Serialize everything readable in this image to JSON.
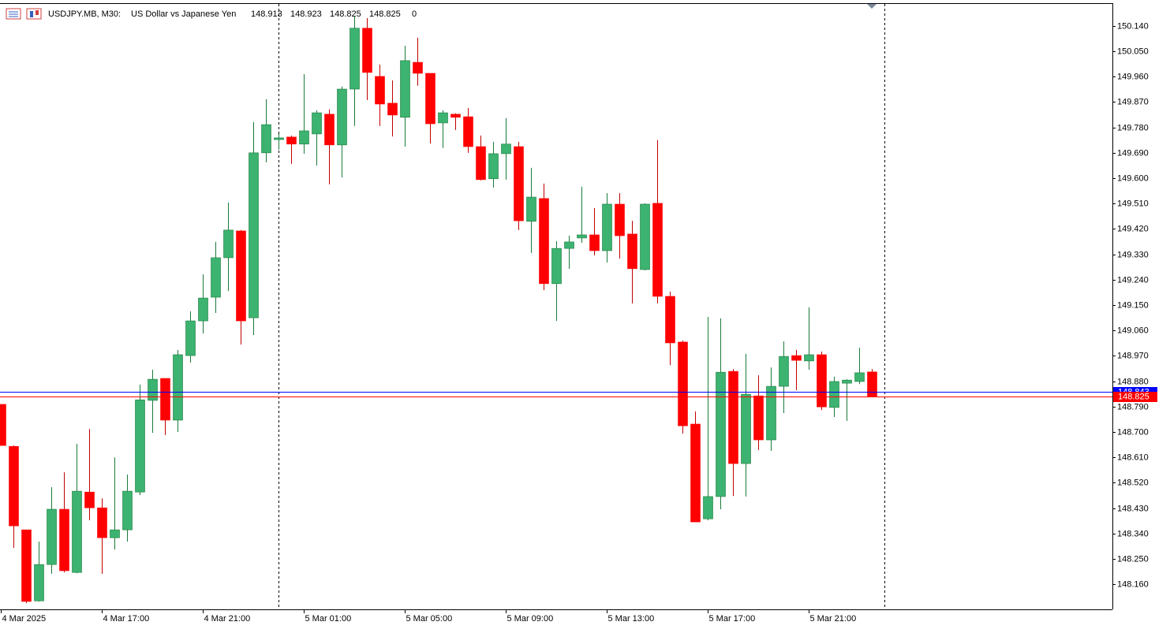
{
  "chart_data": {
    "type": "candlestick",
    "header": {
      "symbol": "USDJPY.MB, M30:",
      "description": "US Dollar vs Japanese Yen",
      "open": 148.913,
      "high": 148.923,
      "low": 148.825,
      "close": 148.825,
      "spread": 0
    },
    "categories": [
      "4 Mar 2025",
      null,
      null,
      null,
      null,
      null,
      null,
      null,
      "4 Mar 17:00",
      null,
      null,
      null,
      null,
      null,
      null,
      null,
      "4 Mar 21:00",
      null,
      null,
      null,
      null,
      null,
      null,
      null,
      "5 Mar 01:00",
      null,
      null,
      null,
      null,
      null,
      null,
      null,
      "5 Mar 05:00",
      null,
      null,
      null,
      null,
      null,
      null,
      null,
      "5 Mar 09:00",
      null,
      null,
      null,
      null,
      null,
      null,
      null,
      "5 Mar 13:00",
      null,
      null,
      null,
      null,
      null,
      null,
      null,
      "5 Mar 17:00",
      null,
      null,
      null,
      null,
      null,
      null,
      null,
      "5 Mar 21:00",
      null,
      null,
      null,
      null,
      null
    ],
    "open": [
      148.798,
      148.649,
      148.353,
      148.101,
      148.23,
      148.426,
      148.202,
      148.487,
      148.431,
      148.325,
      148.353,
      148.487,
      148.812,
      148.89,
      148.742,
      148.971,
      149.094,
      149.178,
      149.318,
      149.413,
      149.105,
      149.69,
      149.737,
      149.746,
      149.721,
      149.757,
      149.827,
      149.718,
      149.916,
      150.132,
      149.961,
      149.866,
      149.816,
      150.011,
      149.972,
      149.796,
      149.827,
      149.818,
      149.712,
      149.598,
      149.687,
      149.712,
      149.447,
      149.528,
      149.226,
      149.351,
      149.388,
      149.399,
      149.343,
      149.508,
      149.402,
      149.276,
      149.511,
      149.181,
      149.019,
      148.728,
      148.392,
      148.471,
      148.915,
      148.588,
      148.828,
      148.672,
      148.862,
      148.971,
      148.952,
      148.974,
      148.787,
      148.873,
      148.879,
      148.913
    ],
    "high": [
      148.798,
      148.652,
      148.353,
      148.311,
      148.504,
      148.557,
      148.658,
      148.711,
      148.465,
      148.61,
      148.549,
      148.868,
      148.921,
      148.89,
      148.991,
      149.128,
      149.259,
      149.374,
      149.514,
      149.416,
      149.799,
      149.88,
      149.757,
      149.751,
      149.969,
      149.841,
      149.844,
      149.925,
      150.174,
      150.168,
      150.003,
      149.947,
      150.07,
      150.098,
      149.972,
      149.841,
      149.83,
      149.849,
      149.751,
      149.729,
      149.813,
      149.729,
      149.637,
      149.581,
      149.377,
      149.396,
      149.57,
      149.494,
      149.547,
      149.547,
      149.449,
      149.511,
      149.735,
      149.198,
      149.024,
      148.773,
      149.108,
      149.103,
      148.923,
      148.977,
      148.901,
      148.929,
      149.021,
      148.991,
      149.142,
      148.985,
      148.896,
      148.887,
      148.999,
      148.923
    ],
    "low": [
      148.652,
      148.289,
      148.093,
      148.099,
      148.197,
      148.202,
      148.199,
      148.387,
      148.197,
      148.283,
      148.311,
      148.476,
      148.697,
      148.689,
      148.7,
      148.946,
      149.049,
      149.122,
      149.2,
      149.01,
      149.044,
      149.656,
      149.701,
      149.651,
      149.687,
      149.645,
      149.578,
      149.603,
      149.785,
      149.877,
      149.785,
      149.748,
      149.712,
      149.928,
      149.723,
      149.707,
      149.771,
      149.69,
      149.592,
      149.567,
      149.595,
      149.416,
      149.335,
      149.203,
      149.094,
      149.279,
      149.371,
      149.326,
      149.301,
      149.315,
      149.156,
      149.273,
      149.156,
      148.937,
      148.694,
      148.381,
      148.387,
      148.426,
      148.473,
      148.471,
      148.636,
      148.633,
      148.767,
      148.848,
      148.921,
      148.778,
      148.753,
      148.739,
      148.87,
      148.825
    ],
    "close": [
      148.652,
      148.367,
      148.099,
      148.23,
      148.426,
      148.208,
      148.49,
      148.431,
      148.325,
      148.353,
      148.49,
      148.814,
      148.887,
      148.742,
      148.974,
      149.094,
      149.175,
      149.318,
      149.416,
      149.094,
      149.69,
      149.79,
      149.743,
      149.721,
      149.768,
      149.832,
      149.718,
      149.916,
      150.132,
      149.975,
      149.863,
      149.824,
      150.017,
      149.972,
      149.793,
      149.832,
      149.816,
      149.712,
      149.595,
      149.687,
      149.721,
      149.449,
      149.533,
      149.226,
      149.351,
      149.374,
      149.399,
      149.343,
      149.508,
      149.396,
      149.279,
      149.508,
      149.181,
      149.016,
      148.722,
      148.381,
      148.471,
      148.912,
      148.588,
      148.834,
      148.672,
      148.862,
      148.968,
      148.954,
      148.974,
      148.789,
      148.879,
      148.884,
      148.91,
      148.825
    ],
    "up_color": "#3cb371",
    "down_color": "#ff0000",
    "up_wick": "#1a7a3a",
    "down_wick": "#c00000",
    "price_lines": [
      {
        "value": 148.843,
        "color": "#0000ff"
      },
      {
        "value": 148.825,
        "color": "#ff0000"
      }
    ],
    "ylim": [
      148.071,
      150.218
    ],
    "yticks": [
      {
        "value": 150.14,
        "label": "150.140"
      },
      {
        "value": 150.05,
        "label": "150.050"
      },
      {
        "value": 149.96,
        "label": "149.960"
      },
      {
        "value": 149.87,
        "label": "149.870"
      },
      {
        "value": 149.78,
        "label": "149.780"
      },
      {
        "value": 149.69,
        "label": "149.690"
      },
      {
        "value": 149.6,
        "label": "149.600"
      },
      {
        "value": 149.51,
        "label": "149.510"
      },
      {
        "value": 149.42,
        "label": "149.420"
      },
      {
        "value": 149.33,
        "label": "149.330"
      },
      {
        "value": 149.24,
        "label": "149.240"
      },
      {
        "value": 149.15,
        "label": "149.150"
      },
      {
        "value": 149.06,
        "label": "149.060"
      },
      {
        "value": 148.97,
        "label": "148.970"
      },
      {
        "value": 148.88,
        "label": "148.880"
      },
      {
        "value": 148.79,
        "label": "148.790"
      },
      {
        "value": 148.7,
        "label": "148.700"
      },
      {
        "value": 148.61,
        "label": "148.610"
      },
      {
        "value": 148.52,
        "label": "148.520"
      },
      {
        "value": 148.43,
        "label": "148.430"
      },
      {
        "value": 148.34,
        "label": "148.340"
      },
      {
        "value": 148.25,
        "label": "148.250"
      },
      {
        "value": 148.16,
        "label": "148.160"
      }
    ]
  }
}
